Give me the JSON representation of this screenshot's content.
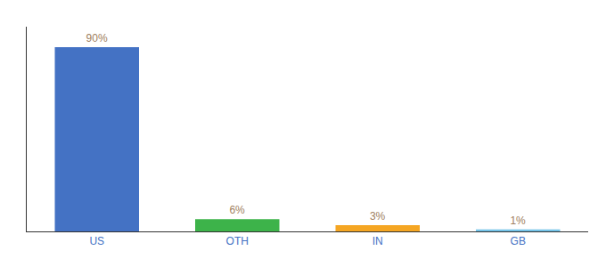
{
  "chart_data": {
    "type": "bar",
    "categories": [
      "US",
      "OTH",
      "IN",
      "GB"
    ],
    "values": [
      90,
      6,
      3,
      1
    ],
    "value_labels": [
      "90%",
      "6%",
      "3%",
      "1%"
    ],
    "colors": [
      "#4472c4",
      "#3db34a",
      "#f5a623",
      "#74c3e8"
    ],
    "ylim": [
      0,
      100
    ],
    "yticks": [],
    "grid": false,
    "data_labels": true,
    "tick_labels": "x"
  }
}
